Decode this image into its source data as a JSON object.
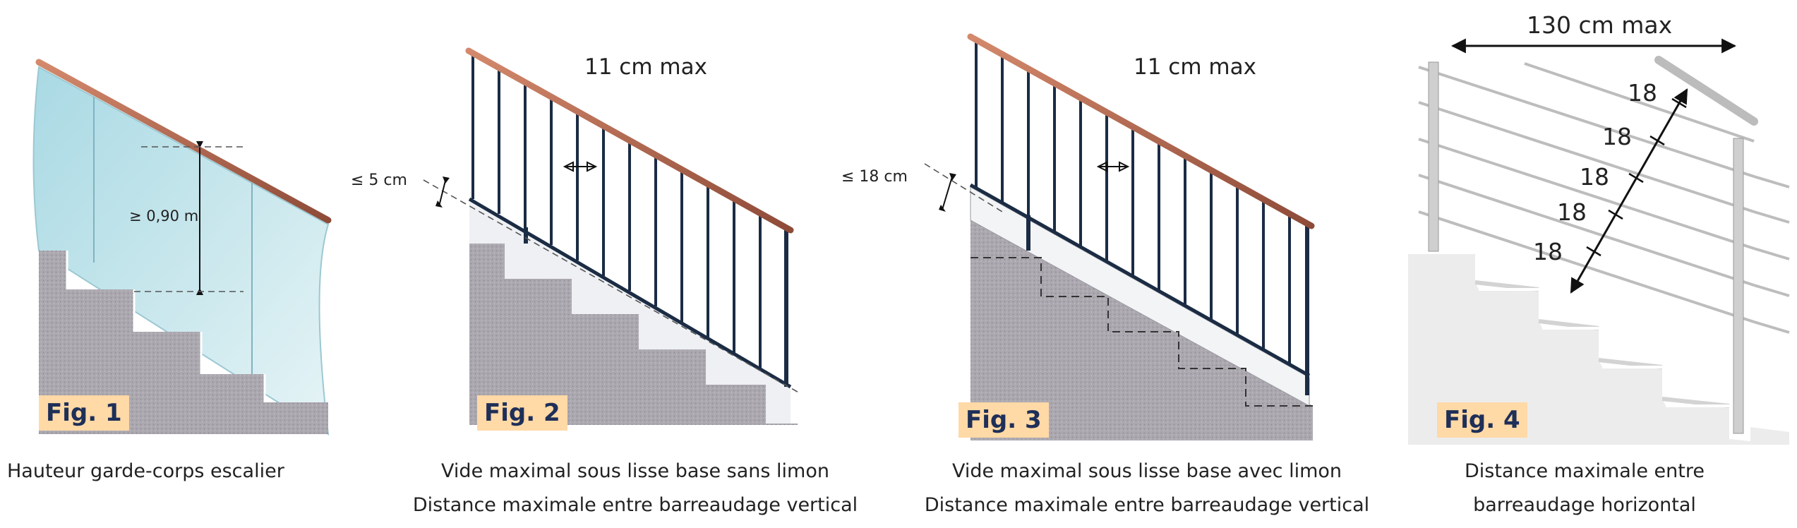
{
  "figures": [
    {
      "badge": "Fig. 1",
      "dimension_label": "≥ 0,90 m",
      "caption_lines": [
        "Hauteur garde-corps escalier"
      ]
    },
    {
      "badge": "Fig. 2",
      "top_label": "11 cm max",
      "side_label": "≤ 5 cm",
      "caption_lines": [
        "Vide maximal sous lisse base sans limon",
        "Distance maximale entre barreaudage vertical"
      ]
    },
    {
      "badge": "Fig. 3",
      "top_label": "11 cm max",
      "side_label": "≤ 18 cm",
      "caption_lines": [
        "Vide maximal sous lisse base avec limon",
        "Distance maximale entre barreaudage vertical"
      ]
    },
    {
      "badge": "Fig. 4",
      "top_label": "130 cm max",
      "spacing_labels": [
        "18",
        "18",
        "18",
        "18",
        "18"
      ],
      "caption_lines": [
        "Distance maximale entre",
        "barreaudage horizontal"
      ]
    }
  ],
  "colors": {
    "handrail": "#b56a52",
    "glass": "#bfe3ea",
    "stone": "#aeaab2",
    "badge_bg": "#ffd9a6",
    "badge_text": "#1e2f58",
    "steel": "#c7c7c7"
  }
}
